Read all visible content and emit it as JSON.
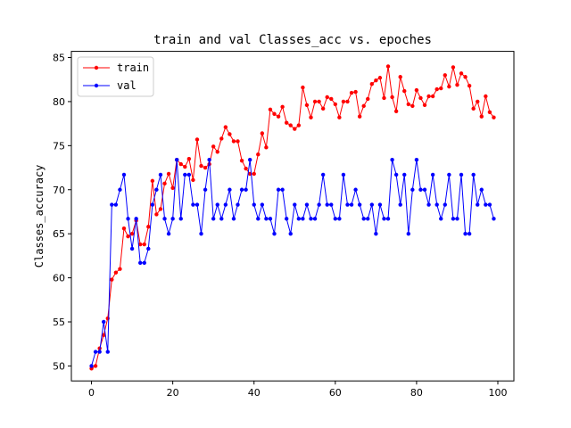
{
  "chart_data": {
    "type": "line",
    "title": "train and val Classes_acc vs. epoches",
    "xlabel": "",
    "ylabel": "Classes_accuracy",
    "xlim": [
      -4.95,
      103.95
    ],
    "ylim": [
      48.3,
      85.7
    ],
    "xticks": [
      0,
      20,
      40,
      60,
      80,
      100
    ],
    "yticks": [
      50,
      55,
      60,
      65,
      70,
      75,
      80,
      85
    ],
    "grid": false,
    "legend": "top-left",
    "series": [
      {
        "name": "train",
        "color": "#ff0000",
        "marker": "circle",
        "values": [
          49.7,
          50.0,
          52.0,
          53.5,
          55.4,
          59.8,
          60.6,
          61.0,
          65.6,
          64.7,
          65.0,
          66.5,
          63.8,
          63.8,
          65.8,
          71.0,
          67.2,
          67.8,
          70.7,
          71.8,
          70.2,
          73.4,
          72.9,
          72.6,
          73.5,
          71.1,
          75.7,
          72.7,
          72.5,
          72.9,
          74.9,
          74.3,
          75.8,
          77.1,
          76.3,
          75.5,
          75.5,
          73.3,
          72.4,
          71.8,
          71.8,
          74.0,
          76.4,
          74.8,
          79.1,
          78.6,
          78.3,
          79.4,
          77.6,
          77.3,
          76.9,
          77.3,
          81.6,
          79.6,
          78.2,
          80.0,
          80.0,
          79.2,
          80.5,
          80.3,
          79.7,
          78.2,
          80.0,
          80.0,
          81.0,
          81.1,
          78.3,
          79.5,
          80.3,
          82.0,
          82.4,
          82.7,
          80.4,
          84.0,
          80.5,
          78.9,
          82.8,
          81.2,
          79.7,
          79.5,
          81.3,
          80.4,
          79.6,
          80.6,
          80.6,
          81.4,
          81.5,
          83.0,
          81.7,
          83.9,
          81.9,
          83.2,
          82.8,
          81.8,
          79.2,
          80.0,
          78.3,
          80.6,
          78.8,
          78.2
        ]
      },
      {
        "name": "val",
        "color": "#0000ff",
        "marker": "circle",
        "values": [
          50.0,
          51.6,
          51.6,
          55.0,
          51.6,
          68.3,
          68.3,
          70.0,
          71.7,
          66.7,
          63.3,
          66.7,
          61.7,
          61.7,
          63.3,
          68.3,
          70.0,
          71.7,
          66.7,
          65.0,
          66.7,
          73.4,
          66.7,
          71.7,
          71.7,
          68.3,
          68.3,
          65.0,
          70.0,
          73.4,
          66.7,
          68.3,
          66.7,
          68.3,
          70.0,
          66.7,
          68.3,
          70.0,
          70.0,
          73.4,
          68.3,
          66.7,
          68.3,
          66.7,
          66.7,
          65.0,
          70.0,
          70.0,
          66.7,
          65.0,
          68.3,
          66.7,
          66.7,
          68.3,
          66.7,
          66.7,
          68.3,
          71.7,
          68.3,
          68.3,
          66.7,
          66.7,
          71.7,
          68.3,
          68.3,
          70.0,
          68.3,
          66.7,
          66.7,
          68.3,
          65.0,
          68.3,
          66.7,
          66.7,
          73.4,
          71.7,
          68.3,
          71.7,
          65.0,
          70.0,
          73.4,
          70.0,
          70.0,
          68.3,
          71.7,
          68.3,
          66.7,
          68.3,
          71.7,
          66.7,
          66.7,
          71.7,
          65.0,
          65.0,
          71.7,
          68.3,
          70.0,
          68.3,
          68.3,
          66.7
        ]
      }
    ]
  }
}
